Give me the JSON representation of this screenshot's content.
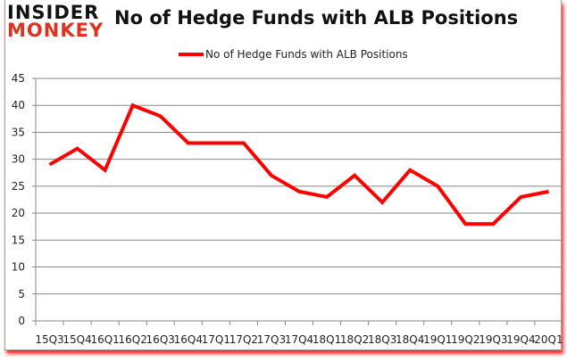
{
  "logo": {
    "line1": "INSIDER",
    "line2": "MONKEY"
  },
  "title": "No of Hedge Funds with ALB Positions",
  "legend": {
    "label": "No of Hedge Funds with ALB Positions",
    "color": "#ff0000"
  },
  "chart_data": {
    "type": "line",
    "title": "No of Hedge Funds with ALB Positions",
    "xlabel": "",
    "ylabel": "",
    "ylim": [
      0,
      45
    ],
    "yticks": [
      0,
      5,
      10,
      15,
      20,
      25,
      30,
      35,
      40,
      45
    ],
    "grid": true,
    "legend_position": "top",
    "categories": [
      "15Q3",
      "15Q4",
      "16Q1",
      "16Q2",
      "16Q3",
      "16Q4",
      "17Q1",
      "17Q2",
      "17Q3",
      "17Q4",
      "18Q1",
      "18Q2",
      "18Q3",
      "18Q4",
      "19Q1",
      "19Q2",
      "19Q3",
      "19Q4",
      "20Q1"
    ],
    "series": [
      {
        "name": "No of Hedge Funds with ALB Positions",
        "color": "#ff0000",
        "values": [
          29,
          32,
          28,
          40,
          38,
          33,
          33,
          33,
          27,
          24,
          23,
          27,
          22,
          28,
          25,
          18,
          18,
          23,
          24
        ]
      }
    ]
  }
}
